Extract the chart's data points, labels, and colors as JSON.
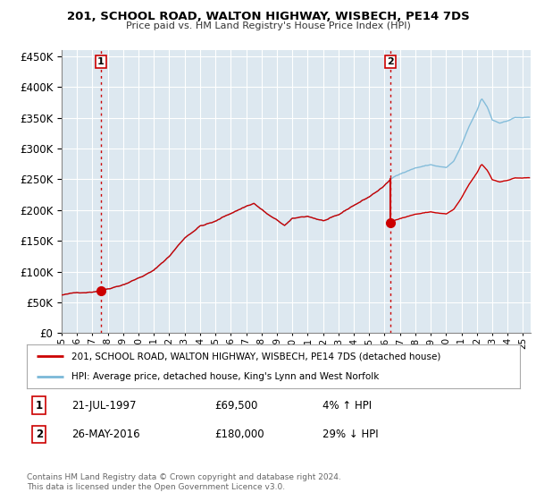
{
  "title": "201, SCHOOL ROAD, WALTON HIGHWAY, WISBECH, PE14 7DS",
  "subtitle": "Price paid vs. HM Land Registry's House Price Index (HPI)",
  "legend_line1": "201, SCHOOL ROAD, WALTON HIGHWAY, WISBECH, PE14 7DS (detached house)",
  "legend_line2": "HPI: Average price, detached house, King's Lynn and West Norfolk",
  "footer": "Contains HM Land Registry data © Crown copyright and database right 2024.\nThis data is licensed under the Open Government Licence v3.0.",
  "hpi_color": "#7ab8d8",
  "price_color": "#cc0000",
  "vline_color": "#cc0000",
  "plot_bg_color": "#dde8f0",
  "fig_bg_color": "#ffffff",
  "grid_color": "#ffffff",
  "ylim": [
    0,
    460000
  ],
  "yticks": [
    0,
    50000,
    100000,
    150000,
    200000,
    250000,
    300000,
    350000,
    400000,
    450000
  ],
  "xlim_start": 1995.0,
  "xlim_end": 2025.5,
  "sale1_x": 1997.55,
  "sale1_price": 69500,
  "sale2_x": 2016.4,
  "sale2_price": 180000
}
